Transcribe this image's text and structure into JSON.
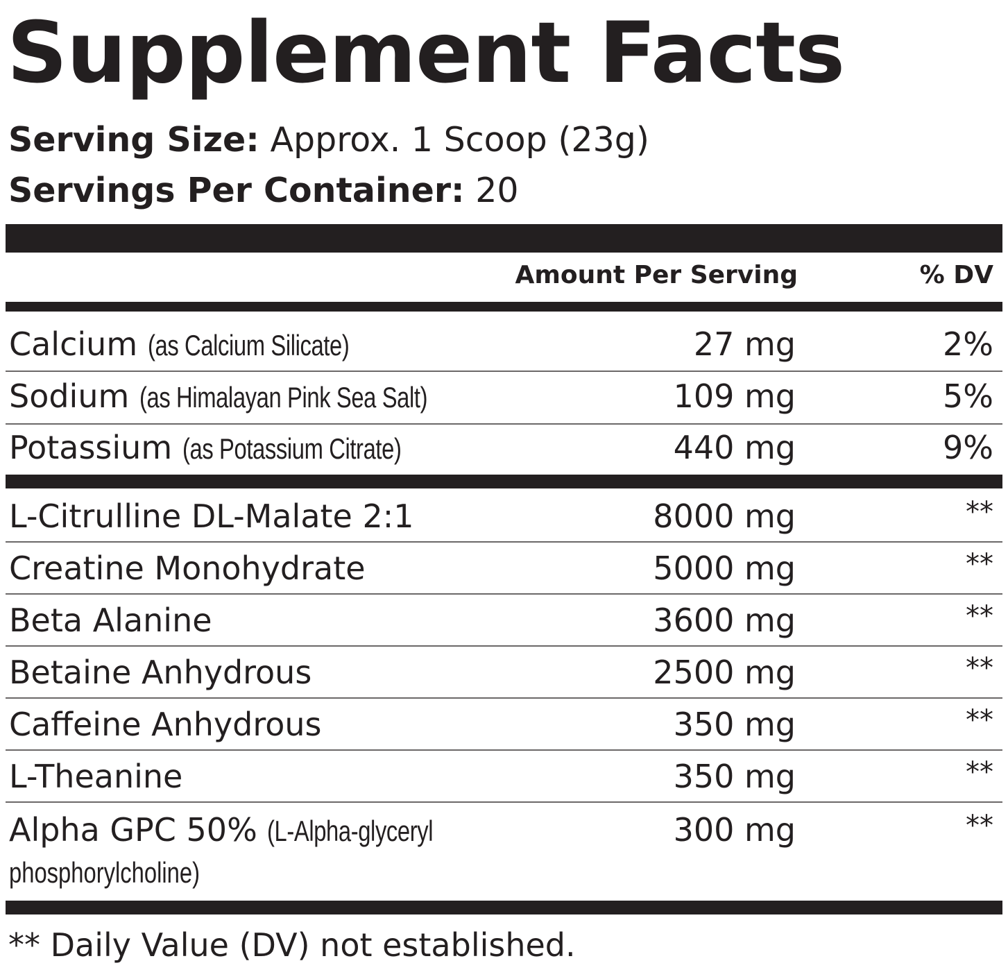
{
  "title": "Supplement Facts",
  "serving_size": {
    "label": "Serving Size:",
    "value": "Approx. 1 Scoop (23g)"
  },
  "servings_per_container": {
    "label": "Servings Per Container:",
    "value": "20"
  },
  "table_header": {
    "amount": "Amount Per Serving",
    "dv": "% DV"
  },
  "minerals": [
    {
      "name": "Calcium",
      "source": "(as Calcium Silicate)",
      "amount": "27 mg",
      "dv": "2%"
    },
    {
      "name": "Sodium",
      "source": "(as Himalayan Pink Sea Salt)",
      "amount": "109 mg",
      "dv": "5%"
    },
    {
      "name": "Potassium",
      "source": "(as Potassium Citrate)",
      "amount": "440 mg",
      "dv": "9%"
    }
  ],
  "ingredients": [
    {
      "name": "L-Citrulline DL-Malate 2:1",
      "source": "",
      "amount": "8000 mg",
      "dv": "**"
    },
    {
      "name": "Creatine Monohydrate",
      "source": "",
      "amount": "5000 mg",
      "dv": "**"
    },
    {
      "name": "Beta Alanine",
      "source": "",
      "amount": "3600 mg",
      "dv": "**"
    },
    {
      "name": "Betaine Anhydrous",
      "source": "",
      "amount": "2500 mg",
      "dv": "**"
    },
    {
      "name": "Caffeine Anhydrous",
      "source": "",
      "amount": "350 mg",
      "dv": "**"
    },
    {
      "name": "L-Theanine",
      "source": "",
      "amount": "350 mg",
      "dv": "**"
    },
    {
      "name": "Alpha GPC 50%",
      "source": "(L-Alpha-glyceryl",
      "source_line2": "phosphorylcholine)",
      "amount": "300 mg",
      "dv": "**"
    }
  ],
  "footnote": "** Daily Value (DV) not established."
}
